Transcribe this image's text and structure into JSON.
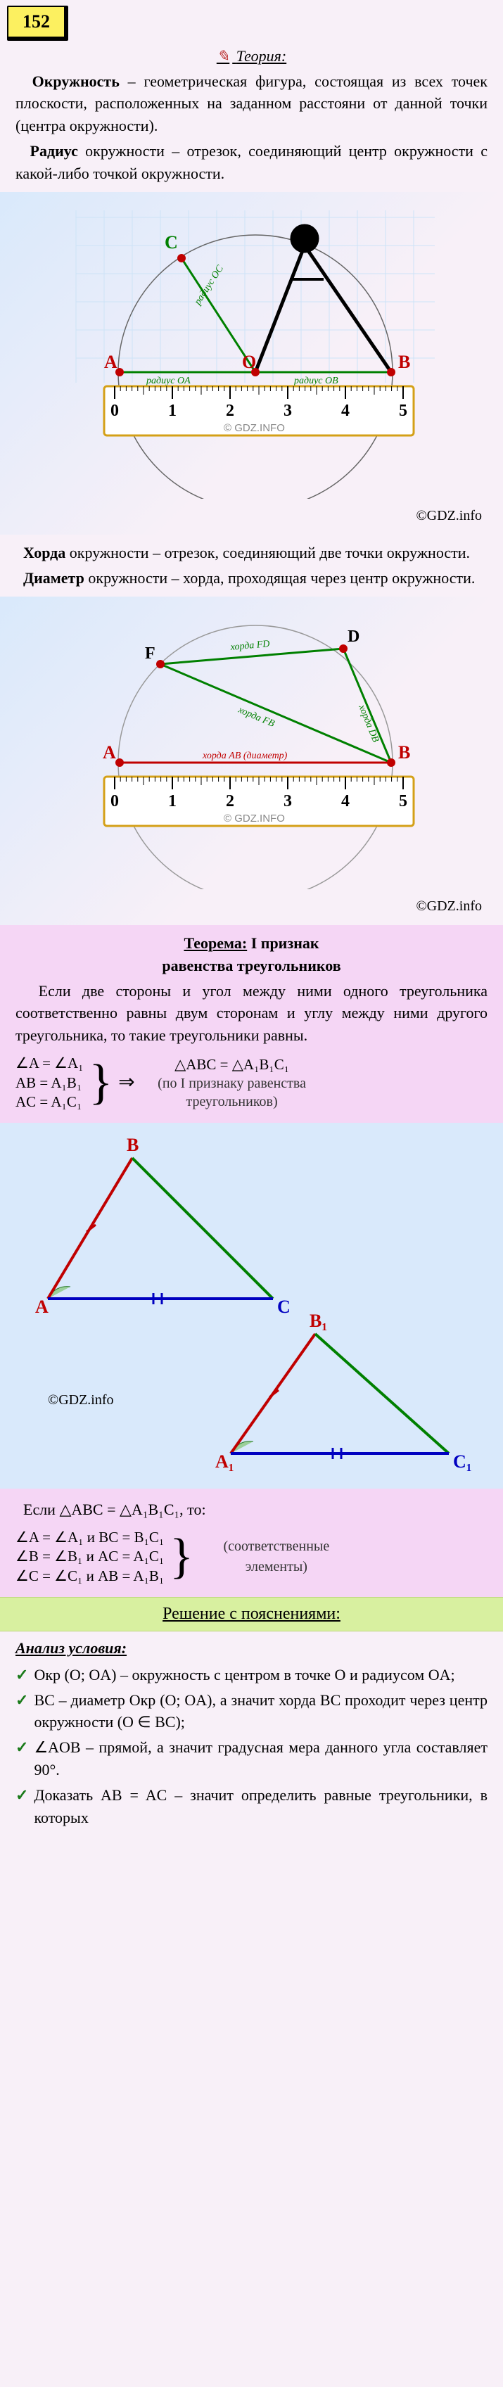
{
  "badge": "152",
  "theory_label": "Теория:",
  "copyright": "©GDZ.info",
  "def_circle": {
    "term": "Окружность",
    "rest": " – геометрическая фигура, состоящая из всех точек плоскости, расположенных на заданном расстояни от данной точки (центра окружности)."
  },
  "def_radius": {
    "term": "Радиус",
    "rest": " окружности – отрезок, соеди­няющий центр окружности с какой-либо точкой окружности."
  },
  "def_chord": {
    "term": "Хорда",
    "rest": " окружности – отрезок, соеди­няющий две точки окружности."
  },
  "def_diameter": {
    "term": "Диаметр",
    "rest": " окружности – хорда, прохо­дящая через центр окружности."
  },
  "theorem_title_1": "Теорема:",
  "theorem_title_2": " I признак",
  "theorem_title_3": "равенства треугольников",
  "theorem_body": "Если две стороны и угол между ними одного треугольника соответственно равны двум сторонам и углу между ними другого треугольника, то такие треуголь­ники равны.",
  "theorem_math_left": [
    "∠A  =  ∠A₁",
    "AB  =  A₁B₁",
    "AC  =  A₁C₁"
  ],
  "theorem_math_right_top": "△ABC = △A₁B₁C₁",
  "theorem_math_right_note": "(по I признаку равенства треугольников)",
  "corr_if": "Если  △ABC = △A₁B₁C₁, то:",
  "corr_lines": [
    "∠A  =  ∠A₁ и BC  =  B₁C₁",
    "∠B  =  ∠B₁ и AC  =  A₁C₁",
    "∠C  =  ∠C₁ и AB  =  A₁B₁"
  ],
  "corr_note": "(соответственные элементы)",
  "solution_bar": "Решение с пояснениями:",
  "analysis_title": "Анализ условия:",
  "analysis_items": [
    "Окр (O; OA) – окружность с центром в точке O и радиусом OA;",
    "BC – диаметр Окр (O; OA), а значит хорда BC проходит через центр окруж­ности (O ∈ BC);",
    "∠AOB – прямой, а значит градусная мера данного угла составляет 90°.",
    "Доказать AB = AC – значит определить равные треугольники, в которых"
  ],
  "diagram1": {
    "labels": [
      "A",
      "B",
      "C",
      "O"
    ],
    "radii": [
      "радиус OA",
      "радиус OC",
      "радиус OB"
    ],
    "ticks": [
      "0",
      "1",
      "2",
      "3",
      "4",
      "5"
    ],
    "point_color": "#c00000",
    "radius_color": "#008000",
    "grid_color": "#d9e9fb",
    "ruler_stroke": "#d4a017",
    "circle_stroke": "#555",
    "ruler_brand": "© GDZ.INFO"
  },
  "diagram2": {
    "labels": [
      "A",
      "B",
      "D",
      "F"
    ],
    "chords": [
      "хорда FD",
      "хорда FB",
      "хорда DB"
    ],
    "diameter_label": "хорда AB (диаметр)",
    "ticks": [
      "0",
      "1",
      "2",
      "3",
      "4",
      "5"
    ],
    "point_color": "#c00000",
    "chord_color": "#008000",
    "circle_stroke": "#999",
    "ruler_stroke": "#d4a017",
    "ruler_brand": "© GDZ.INFO"
  },
  "diagram3": {
    "tri1": {
      "A": "A",
      "B": "B",
      "C": "C",
      "colors": {
        "AB": "#c00000",
        "BC": "#008000",
        "AC": "#0000c0"
      }
    },
    "tri2": {
      "A": "A₁",
      "B": "B₁",
      "C": "C₁",
      "colors": {
        "AB": "#c00000",
        "BC": "#008000",
        "AC": "#0000c0"
      }
    },
    "angle_fill": "#9ad09a",
    "tick_color": "#c00000",
    "copyright": "©GDZ.info"
  }
}
